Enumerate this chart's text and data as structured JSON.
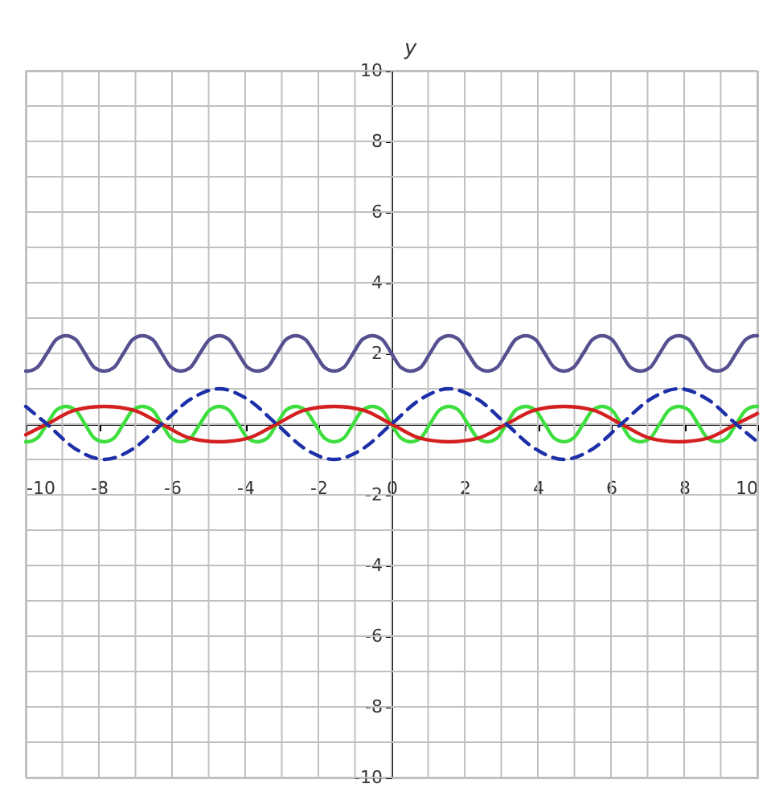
{
  "chart_data": {
    "type": "line",
    "ylabel": "y",
    "xlim": [
      -10,
      10
    ],
    "ylim": [
      -10,
      10
    ],
    "xticks": [
      -10,
      {
        "value": -9,
        "label": null
      },
      -8,
      {
        "value": -7,
        "label": null
      },
      -6,
      {
        "value": -5,
        "label": null
      },
      -4,
      {
        "value": -3,
        "label": null
      },
      -2,
      {
        "value": -1,
        "label": null
      },
      0,
      {
        "value": 1,
        "label": null
      },
      2,
      {
        "value": 3,
        "label": null
      },
      4,
      {
        "value": 5,
        "label": null
      },
      6,
      {
        "value": 7,
        "label": null
      },
      8,
      {
        "value": 9,
        "label": null
      },
      10
    ],
    "yticks": [
      -10,
      {
        "value": -9,
        "label": null
      },
      -8,
      {
        "value": -7,
        "label": null
      },
      -6,
      {
        "value": -5,
        "label": null
      },
      -4,
      {
        "value": -3,
        "label": null
      },
      -2,
      {
        "value": -1,
        "label": null
      },
      {
        "value": 0,
        "label": null
      },
      {
        "value": 1,
        "label": null
      },
      2,
      {
        "value": 3,
        "label": null
      },
      4,
      {
        "value": 5,
        "label": null
      },
      6,
      {
        "value": 7,
        "label": null
      },
      8,
      {
        "value": 9,
        "label": null
      },
      10
    ],
    "grid": true,
    "marker": "none",
    "series": [
      {
        "color": "#55508f",
        "line_style": "solid",
        "x": [
          -10,
          -9.95,
          -9.69,
          -9.42,
          -9.16,
          -8.9,
          -8.64,
          -8.38,
          -8.12,
          -7.85,
          -7.59,
          -7.33,
          -7.07,
          -6.81,
          -6.54,
          -6.28,
          -6.02,
          -5.76,
          -5.5,
          -5.24,
          -4.97,
          -4.71,
          -4.45,
          -4.19,
          -3.93,
          -3.67,
          -3.4,
          -3.14,
          -2.88,
          -2.62,
          -2.36,
          -2.09,
          -1.83,
          -1.57,
          -1.31,
          -1.05,
          -0.79,
          -0.52,
          -0.26,
          0,
          0.26,
          0.52,
          0.79,
          1.05,
          1.31,
          1.57,
          1.83,
          2.09,
          2.36,
          2.62,
          2.88,
          3.14,
          3.4,
          3.67,
          3.93,
          4.19,
          4.45,
          4.71,
          4.97,
          5.24,
          5.5,
          5.76,
          6.02,
          6.28,
          6.54,
          6.81,
          7.07,
          7.33,
          7.59,
          7.85,
          8.12,
          8.38,
          8.64,
          8.9,
          9.16,
          9.42,
          9.69,
          9.95,
          10
        ],
        "values": [
          1.5,
          1.5,
          1.6,
          2,
          2.4,
          2.5,
          2.4,
          2,
          1.6,
          1.5,
          1.6,
          2,
          2.4,
          2.5,
          2.4,
          2,
          1.6,
          1.5,
          1.6,
          2,
          2.4,
          2.5,
          2.4,
          2,
          1.6,
          1.5,
          1.6,
          2,
          2.4,
          2.5,
          2.4,
          2,
          1.6,
          1.5,
          1.6,
          2,
          2.4,
          2.5,
          2.4,
          2,
          1.6,
          1.5,
          1.6,
          2,
          2.4,
          2.5,
          2.4,
          2,
          1.6,
          1.5,
          1.6,
          2,
          2.4,
          2.5,
          2.4,
          2,
          1.6,
          1.5,
          1.6,
          2,
          2.4,
          2.5,
          2.4,
          2,
          1.6,
          1.5,
          1.6,
          2,
          2.4,
          2.5,
          2.4,
          2,
          1.6,
          1.5,
          1.6,
          2,
          2.4,
          2.5,
          2.5
        ]
      },
      {
        "color": "#3ede3e",
        "line_style": "solid",
        "x": [
          -10,
          -9.95,
          -9.69,
          -9.42,
          -9.16,
          -8.9,
          -8.64,
          -8.38,
          -8.12,
          -7.85,
          -7.59,
          -7.33,
          -7.07,
          -6.81,
          -6.54,
          -6.28,
          -6.02,
          -5.76,
          -5.5,
          -5.24,
          -4.97,
          -4.71,
          -4.45,
          -4.19,
          -3.93,
          -3.67,
          -3.4,
          -3.14,
          -2.88,
          -2.62,
          -2.36,
          -2.09,
          -1.83,
          -1.57,
          -1.31,
          -1.05,
          -0.79,
          -0.52,
          -0.26,
          0,
          0.26,
          0.52,
          0.79,
          1.05,
          1.31,
          1.57,
          1.83,
          2.09,
          2.36,
          2.62,
          2.88,
          3.14,
          3.4,
          3.67,
          3.93,
          4.19,
          4.45,
          4.71,
          4.97,
          5.24,
          5.5,
          5.76,
          6.02,
          6.28,
          6.54,
          6.81,
          7.07,
          7.33,
          7.59,
          7.85,
          8.12,
          8.38,
          8.64,
          8.9,
          9.16,
          9.42,
          9.69,
          9.95,
          10
        ],
        "values": [
          -0.5,
          -0.5,
          -0.4,
          0,
          0.4,
          0.5,
          0.4,
          0,
          -0.4,
          -0.5,
          -0.4,
          0,
          0.4,
          0.5,
          0.4,
          0,
          -0.4,
          -0.5,
          -0.4,
          0,
          0.4,
          0.5,
          0.4,
          0,
          -0.4,
          -0.5,
          -0.4,
          0,
          0.4,
          0.5,
          0.4,
          0,
          -0.4,
          -0.5,
          -0.4,
          0,
          0.4,
          0.5,
          0.4,
          0,
          -0.4,
          -0.5,
          -0.4,
          0,
          0.4,
          0.5,
          0.4,
          0,
          -0.4,
          -0.5,
          -0.4,
          0,
          0.4,
          0.5,
          0.4,
          0,
          -0.4,
          -0.5,
          -0.4,
          0,
          0.4,
          0.5,
          0.4,
          0,
          -0.4,
          -0.5,
          -0.4,
          0,
          0.4,
          0.5,
          0.4,
          0,
          -0.4,
          -0.5,
          -0.4,
          0,
          0.4,
          0.5,
          0.5
        ]
      },
      {
        "color": "#d42020",
        "line_style": "solid",
        "x": [
          -10,
          -9.42,
          -8.64,
          -7.85,
          -7.07,
          -6.28,
          -5.5,
          -4.71,
          -3.93,
          -3.14,
          -2.36,
          -1.57,
          -0.79,
          0,
          0.79,
          1.57,
          2.36,
          3.14,
          3.93,
          4.71,
          5.5,
          6.28,
          7.07,
          7.85,
          8.64,
          9.42,
          10
        ],
        "values": [
          -0.3,
          0,
          0.4,
          0.5,
          0.4,
          0,
          -0.4,
          -0.5,
          -0.4,
          0,
          0.4,
          0.5,
          0.4,
          0,
          -0.4,
          -0.5,
          -0.4,
          0,
          0.4,
          0.5,
          0.4,
          0,
          -0.4,
          -0.5,
          -0.4,
          0,
          0.3
        ]
      },
      {
        "color": "#1c2fa8",
        "line_style": "dashed",
        "x": [
          -10,
          -9.42,
          -8.64,
          -7.85,
          -7.07,
          -6.28,
          -5.5,
          -4.71,
          -3.93,
          -3.14,
          -2.36,
          -1.57,
          -0.79,
          0,
          0.79,
          1.57,
          2.36,
          3.14,
          3.93,
          4.71,
          5.5,
          6.28,
          7.07,
          7.85,
          8.64,
          9.42,
          10
        ],
        "values": [
          0.5,
          0,
          -0.7,
          -1,
          -0.7,
          0,
          0.7,
          1,
          0.7,
          0,
          -0.7,
          -1,
          -0.7,
          0,
          0.7,
          1,
          0.7,
          0,
          -0.7,
          -1,
          -0.7,
          0,
          0.7,
          1,
          0.7,
          0,
          -0.5
        ]
      }
    ]
  }
}
